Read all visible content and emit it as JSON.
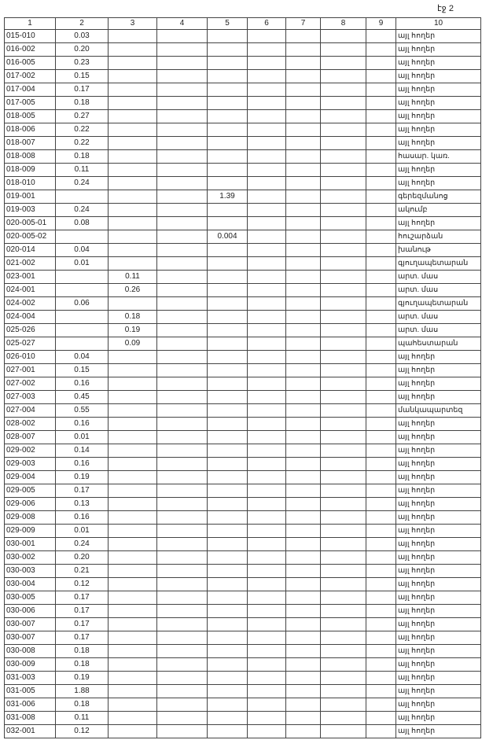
{
  "header": {
    "page": "էջ 2"
  },
  "table": {
    "columns": [
      "1",
      "2",
      "3",
      "4",
      "5",
      "6",
      "7",
      "8",
      "9",
      "10"
    ],
    "rows": [
      [
        "015-010",
        "0.03",
        null,
        null,
        null,
        null,
        null,
        null,
        null,
        "այլ հողեր"
      ],
      [
        "016-002",
        "0.20",
        null,
        null,
        null,
        null,
        null,
        null,
        null,
        "այլ հողեր"
      ],
      [
        "016-005",
        "0.23",
        null,
        null,
        null,
        null,
        null,
        null,
        null,
        "այլ հողեր"
      ],
      [
        "017-002",
        "0.15",
        null,
        null,
        null,
        null,
        null,
        null,
        null,
        "այլ հողեր"
      ],
      [
        "017-004",
        "0.17",
        null,
        null,
        null,
        null,
        null,
        null,
        null,
        "այլ հողեր"
      ],
      [
        "017-005",
        "0.18",
        null,
        null,
        null,
        null,
        null,
        null,
        null,
        "այլ հողեր"
      ],
      [
        "018-005",
        "0.27",
        null,
        null,
        null,
        null,
        null,
        null,
        null,
        "այլ հողեր"
      ],
      [
        "018-006",
        "0.22",
        null,
        null,
        null,
        null,
        null,
        null,
        null,
        "այլ հողեր"
      ],
      [
        "018-007",
        "0.22",
        null,
        null,
        null,
        null,
        null,
        null,
        null,
        "այլ հողեր"
      ],
      [
        "018-008",
        "0.18",
        null,
        null,
        null,
        null,
        null,
        null,
        null,
        "հասար. կառ."
      ],
      [
        "018-009",
        "0.11",
        null,
        null,
        null,
        null,
        null,
        null,
        null,
        "այլ հողեր"
      ],
      [
        "018-010",
        "0.24",
        null,
        null,
        null,
        null,
        null,
        null,
        null,
        "այլ հողեր"
      ],
      [
        "019-001",
        null,
        null,
        null,
        "1.39",
        null,
        null,
        null,
        null,
        "գերեզմանոց"
      ],
      [
        "019-003",
        "0.24",
        null,
        null,
        null,
        null,
        null,
        null,
        null,
        "ակումբ"
      ],
      [
        "020-005-01",
        "0.08",
        null,
        null,
        null,
        null,
        null,
        null,
        null,
        "այլ հողեր"
      ],
      [
        "020-005-02",
        null,
        null,
        null,
        "0.004",
        null,
        null,
        null,
        null,
        "հուշարձան"
      ],
      [
        "020-014",
        "0.04",
        null,
        null,
        null,
        null,
        null,
        null,
        null,
        "խանութ"
      ],
      [
        "021-002",
        "0.01",
        null,
        null,
        null,
        null,
        null,
        null,
        null,
        "գյուղապետարան"
      ],
      [
        "023-001",
        null,
        "0.11",
        null,
        null,
        null,
        null,
        null,
        null,
        "արտ. մաս"
      ],
      [
        "024-001",
        null,
        "0.26",
        null,
        null,
        null,
        null,
        null,
        null,
        "արտ. մաս"
      ],
      [
        "024-002",
        "0.06",
        null,
        null,
        null,
        null,
        null,
        null,
        null,
        "գյուղապետարան"
      ],
      [
        "024-004",
        null,
        "0.18",
        null,
        null,
        null,
        null,
        null,
        null,
        "արտ. մաս"
      ],
      [
        "025-026",
        null,
        "0.19",
        null,
        null,
        null,
        null,
        null,
        null,
        "արտ. մաս"
      ],
      [
        "025-027",
        null,
        "0.09",
        null,
        null,
        null,
        null,
        null,
        null,
        "պահեստարան"
      ],
      [
        "026-010",
        "0.04",
        null,
        null,
        null,
        null,
        null,
        null,
        null,
        "այլ հողեր"
      ],
      [
        "027-001",
        "0.15",
        null,
        null,
        null,
        null,
        null,
        null,
        null,
        "այլ հողեր"
      ],
      [
        "027-002",
        "0.16",
        null,
        null,
        null,
        null,
        null,
        null,
        null,
        "այլ հողեր"
      ],
      [
        "027-003",
        "0.45",
        null,
        null,
        null,
        null,
        null,
        null,
        null,
        "այլ հողեր"
      ],
      [
        "027-004",
        "0.55",
        null,
        null,
        null,
        null,
        null,
        null,
        null,
        "մանկապարտեզ"
      ],
      [
        "028-002",
        "0.16",
        null,
        null,
        null,
        null,
        null,
        null,
        null,
        "այլ հողեր"
      ],
      [
        "028-007",
        "0.01",
        null,
        null,
        null,
        null,
        null,
        null,
        null,
        "այլ հողեր"
      ],
      [
        "029-002",
        "0.14",
        null,
        null,
        null,
        null,
        null,
        null,
        null,
        "այլ հողեր"
      ],
      [
        "029-003",
        "0.16",
        null,
        null,
        null,
        null,
        null,
        null,
        null,
        "այլ հողեր"
      ],
      [
        "029-004",
        "0.19",
        null,
        null,
        null,
        null,
        null,
        null,
        null,
        "այլ հողեր"
      ],
      [
        "029-005",
        "0.17",
        null,
        null,
        null,
        null,
        null,
        null,
        null,
        "այլ հողեր"
      ],
      [
        "029-006",
        "0.13",
        null,
        null,
        null,
        null,
        null,
        null,
        null,
        "այլ հողեր"
      ],
      [
        "029-008",
        "0.16",
        null,
        null,
        null,
        null,
        null,
        null,
        null,
        "այլ հողեր"
      ],
      [
        "029-009",
        "0.01",
        null,
        null,
        null,
        null,
        null,
        null,
        null,
        "այլ հողեր"
      ],
      [
        "030-001",
        "0.24",
        null,
        null,
        null,
        null,
        null,
        null,
        null,
        "այլ հողեր"
      ],
      [
        "030-002",
        "0.20",
        null,
        null,
        null,
        null,
        null,
        null,
        null,
        "այլ հողեր"
      ],
      [
        "030-003",
        "0.21",
        null,
        null,
        null,
        null,
        null,
        null,
        null,
        "այլ հողեր"
      ],
      [
        "030-004",
        "0.12",
        null,
        null,
        null,
        null,
        null,
        null,
        null,
        "այլ հողեր"
      ],
      [
        "030-005",
        "0.17",
        null,
        null,
        null,
        null,
        null,
        null,
        null,
        "այլ հողեր"
      ],
      [
        "030-006",
        "0.17",
        null,
        null,
        null,
        null,
        null,
        null,
        null,
        "այլ հողեր"
      ],
      [
        "030-007",
        "0.17",
        null,
        null,
        null,
        null,
        null,
        null,
        null,
        "այլ հողեր"
      ],
      [
        "030-007",
        "0.17",
        null,
        null,
        null,
        null,
        null,
        null,
        null,
        "այլ հողեր"
      ],
      [
        "030-008",
        "0.18",
        null,
        null,
        null,
        null,
        null,
        null,
        null,
        "այլ հողեր"
      ],
      [
        "030-009",
        "0.18",
        null,
        null,
        null,
        null,
        null,
        null,
        null,
        "այլ հողեր"
      ],
      [
        "031-003",
        "0.19",
        null,
        null,
        null,
        null,
        null,
        null,
        null,
        "այլ հողեր"
      ],
      [
        "031-005",
        "1.88",
        null,
        null,
        null,
        null,
        null,
        null,
        null,
        "այլ հողեր"
      ],
      [
        "031-006",
        "0.18",
        null,
        null,
        null,
        null,
        null,
        null,
        null,
        "այլ հողեր"
      ],
      [
        "031-008",
        "0.11",
        null,
        null,
        null,
        null,
        null,
        null,
        null,
        "այլ հողեր"
      ],
      [
        "032-001",
        "0.12",
        null,
        null,
        null,
        null,
        null,
        null,
        null,
        "այլ հողեր"
      ]
    ]
  }
}
